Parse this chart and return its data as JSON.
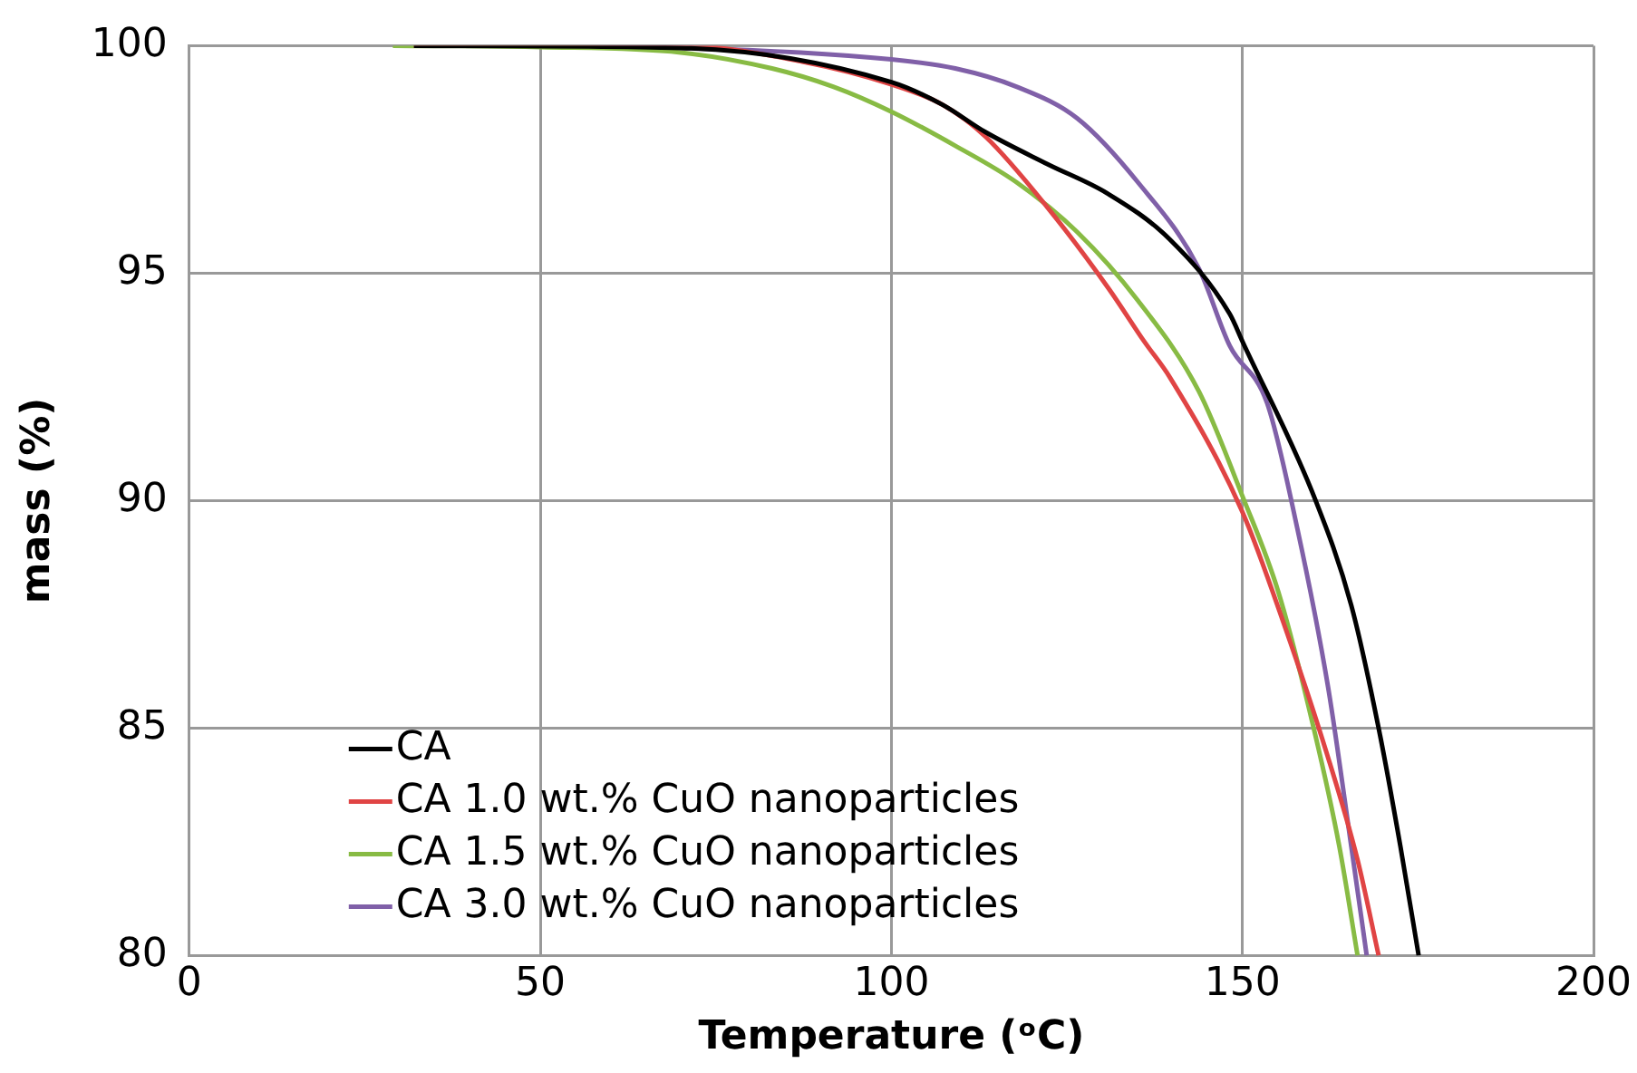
{
  "chart_data": {
    "type": "line",
    "xlabel": "Temperature (ᵒC)",
    "ylabel": "mass (%)",
    "xlim": [
      0,
      200
    ],
    "xticks": [
      0,
      50,
      100,
      150,
      200
    ],
    "ylim": [
      80,
      100
    ],
    "yticks": [
      80,
      85,
      90,
      95,
      100
    ],
    "grid": true,
    "legend": "bottom left",
    "marker": "none",
    "line_style": "solid",
    "series": [
      {
        "name": "CA",
        "color": "#000000",
        "x": [
          32,
          70,
          100,
          107.3,
          113.4,
          122.2,
          130.8,
          139.6,
          148.2,
          150,
          160.3,
          165.5,
          169.4,
          172.5,
          175.1
        ],
        "values": [
          100,
          99.95,
          99.2,
          98.7,
          98.1,
          97.4,
          96.75,
          95.75,
          94.1,
          93.5,
          90.05,
          87.7,
          85,
          82.4,
          80
        ]
      },
      {
        "name": "CA 1.0 wt.% CuO nanoparticles",
        "color": "#e04444",
        "x": [
          32,
          70,
          87.3,
          100,
          107.3,
          113.4,
          122.2,
          131,
          136,
          139.7,
          150,
          156,
          162,
          166.4,
          169.4
        ],
        "values": [
          100,
          100,
          99.65,
          99.15,
          98.7,
          98,
          96.45,
          94.65,
          93.5,
          92.7,
          89.75,
          87.25,
          84.45,
          82.1,
          80
        ]
      },
      {
        "name": "CA 1.5 wt.% CuO nanoparticles",
        "color": "#88bb44",
        "x": [
          29,
          50,
          70,
          83,
          91.7,
          100,
          109.1,
          117.8,
          126.5,
          135.1,
          143.8,
          150,
          155.1,
          160.3,
          163.8,
          166.4
        ],
        "values": [
          100,
          99.97,
          99.85,
          99.5,
          99.1,
          98.55,
          97.8,
          97,
          95.9,
          94.4,
          92.4,
          90.1,
          88,
          84.9,
          82.4,
          80
        ]
      },
      {
        "name": "CA 3.0 wt.% CuO nanoparticles",
        "color": "#8060a8",
        "x": [
          32,
          70,
          100,
          109.1,
          117.8,
          126.5,
          135.1,
          143.8,
          148.2,
          153.5,
          157.8,
          162.2,
          165.5,
          167.7
        ],
        "values": [
          100,
          99.95,
          99.7,
          99.5,
          99.1,
          98.4,
          97,
          95.1,
          93.4,
          92.15,
          89.4,
          85.9,
          82.4,
          80
        ]
      }
    ]
  }
}
